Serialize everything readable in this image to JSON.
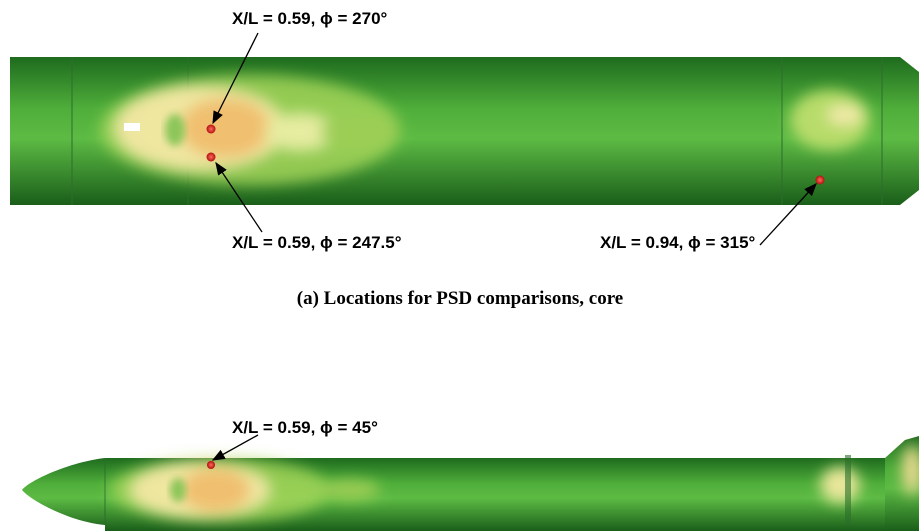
{
  "panels": [
    {
      "caption": "(a) Locations for PSD comparisons, core",
      "annotations": [
        "X/L = 0.59,  ϕ = 270°",
        "X/L = 0.59, ϕ = 247.5°",
        "X/L = 0.94, ϕ = 315°"
      ]
    },
    {
      "annotations": [
        "X/L = 0.59,  ϕ = 45°"
      ]
    }
  ]
}
